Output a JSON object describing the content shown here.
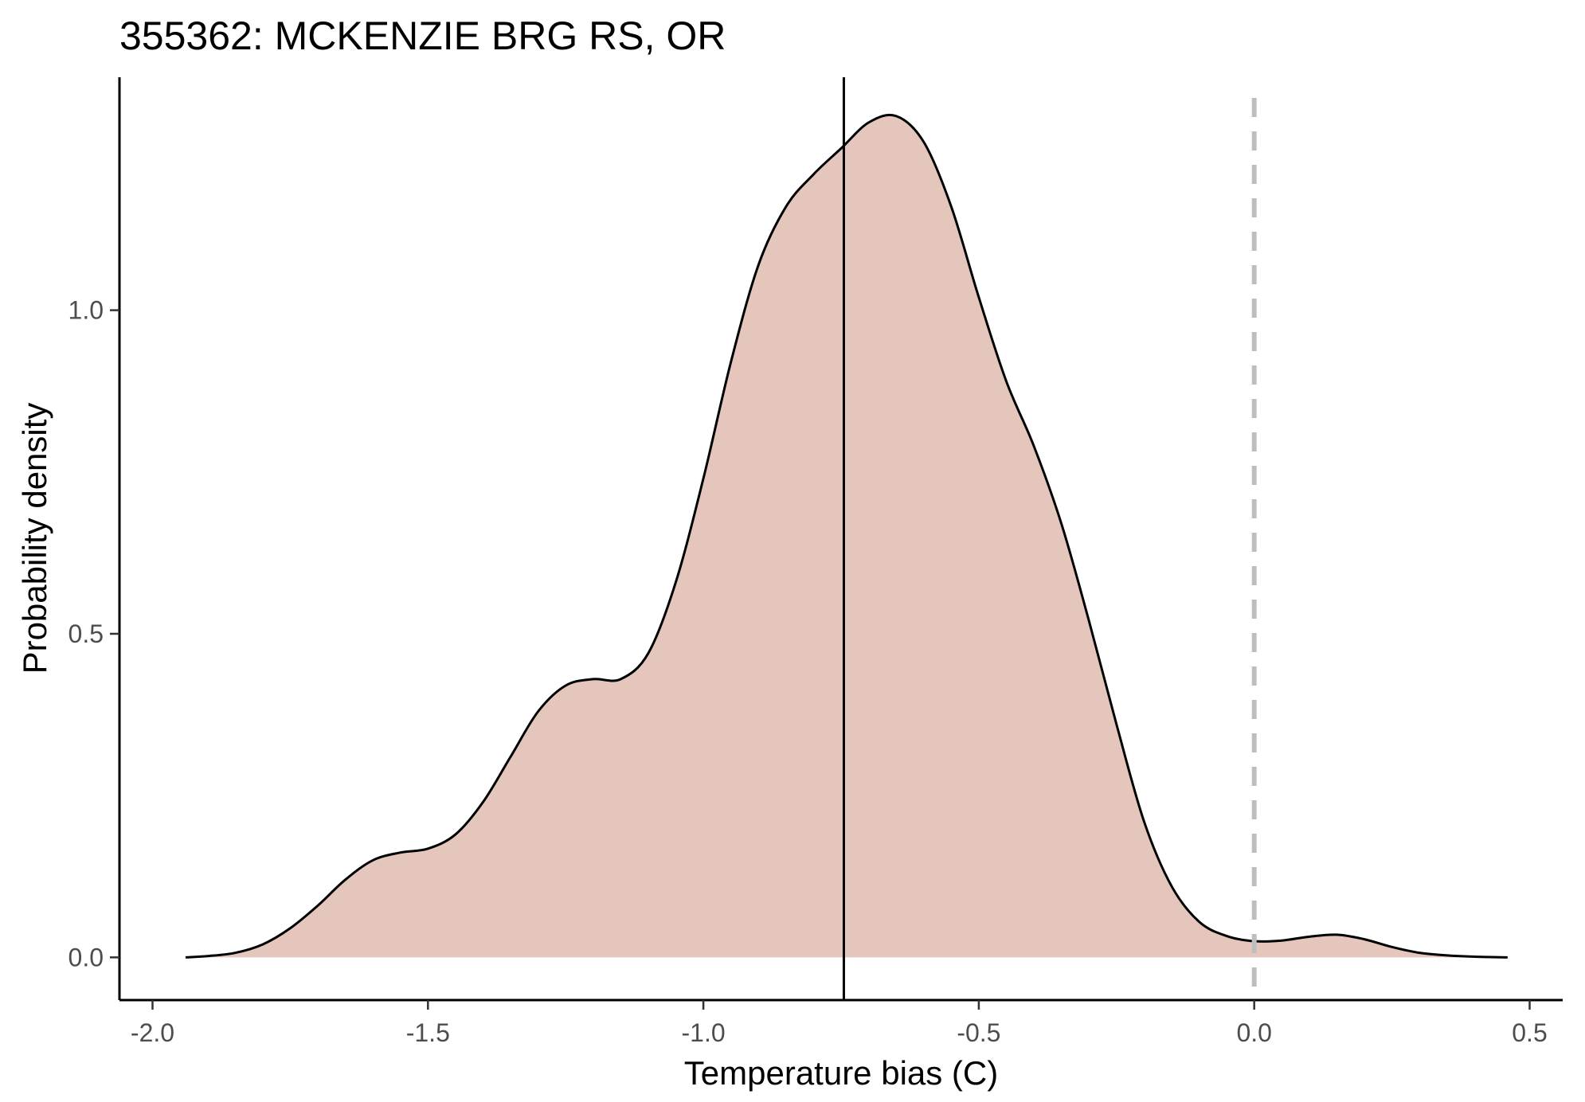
{
  "chart_data": {
    "type": "area",
    "title": "355362: MCKENZIE BRG RS, OR",
    "xlabel": "Temperature bias (C)",
    "ylabel": "Probability density",
    "xlim": [
      -2.06,
      0.56
    ],
    "ylim": [
      -0.066,
      1.36
    ],
    "x_ticks": [
      -2.0,
      -1.5,
      -1.0,
      -0.5,
      0.0,
      0.5
    ],
    "x_tick_labels": [
      "-2.0",
      "-1.5",
      "-1.0",
      "-0.5",
      "0.0",
      "0.5"
    ],
    "y_ticks": [
      0.0,
      0.5,
      1.0
    ],
    "y_tick_labels": [
      "0.0",
      "0.5",
      "1.0"
    ],
    "grid": false,
    "fill_color": "#e4c6bd",
    "line_color": "#000000",
    "series": [
      {
        "x": [
          -1.94,
          -1.9,
          -1.85,
          -1.8,
          -1.75,
          -1.7,
          -1.65,
          -1.6,
          -1.55,
          -1.5,
          -1.45,
          -1.4,
          -1.35,
          -1.3,
          -1.25,
          -1.2,
          -1.15,
          -1.1,
          -1.05,
          -1.0,
          -0.95,
          -0.9,
          -0.85,
          -0.8,
          -0.75,
          -0.7,
          -0.65,
          -0.6,
          -0.55,
          -0.5,
          -0.45,
          -0.4,
          -0.35,
          -0.3,
          -0.25,
          -0.2,
          -0.15,
          -0.1,
          -0.05,
          0.0,
          0.05,
          0.1,
          0.15,
          0.2,
          0.25,
          0.3,
          0.35,
          0.4,
          0.46
        ],
        "y": [
          0.0,
          0.002,
          0.007,
          0.02,
          0.045,
          0.08,
          0.12,
          0.15,
          0.162,
          0.168,
          0.19,
          0.24,
          0.31,
          0.38,
          0.42,
          0.43,
          0.43,
          0.47,
          0.58,
          0.74,
          0.92,
          1.07,
          1.16,
          1.21,
          1.25,
          1.29,
          1.3,
          1.26,
          1.16,
          1.02,
          0.89,
          0.79,
          0.67,
          0.52,
          0.36,
          0.21,
          0.11,
          0.055,
          0.033,
          0.025,
          0.026,
          0.032,
          0.035,
          0.028,
          0.016,
          0.007,
          0.003,
          0.001,
          0.0
        ]
      }
    ],
    "vertical_lines": [
      {
        "x": -0.745,
        "style": "solid",
        "color": "#000000"
      },
      {
        "x": 0.0,
        "style": "dashed",
        "color": "#bebebe"
      }
    ]
  }
}
